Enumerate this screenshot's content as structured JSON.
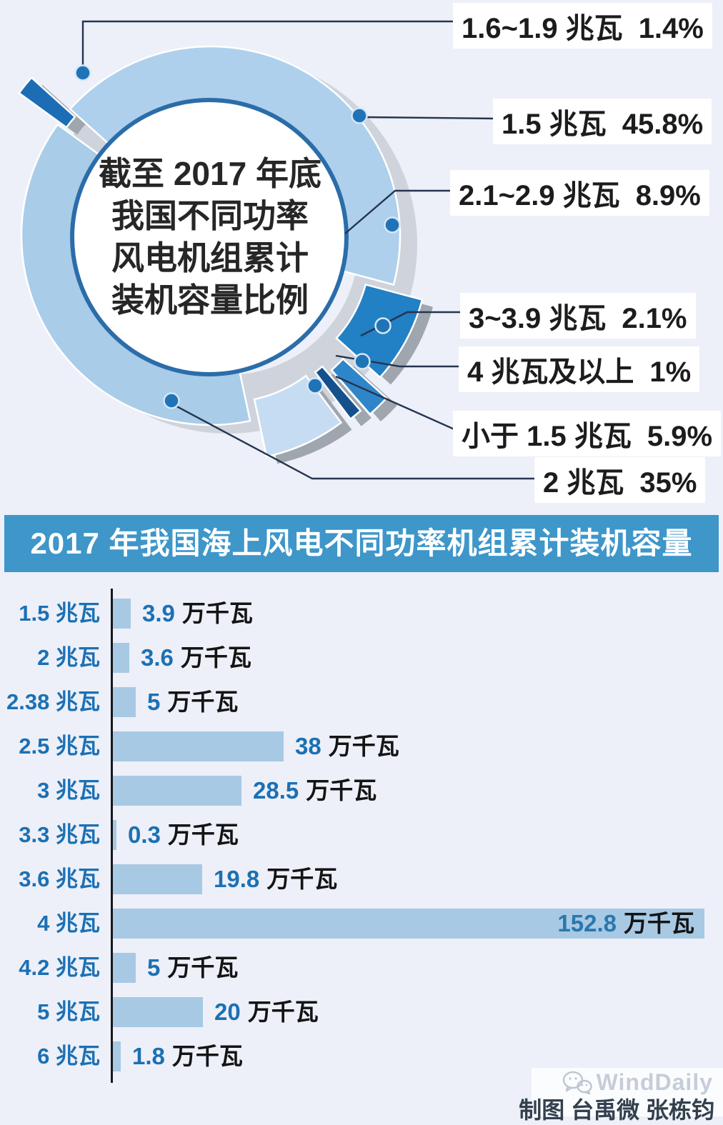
{
  "pie": {
    "center_title_lines": [
      "截至 2017 年底",
      "我国不同功率",
      "风电机组累计",
      "装机容量比例"
    ]
  },
  "chart_data": [
    {
      "type": "pie",
      "title": "截至2017年底我国不同功率风电机组累计装机容量比例",
      "legend_position": "right-callouts",
      "slices": [
        {
          "label": "1.6~1.9 兆瓦",
          "value": 1.4,
          "pct_text": "1.4%",
          "color": "#1d6db6"
        },
        {
          "label": "1.5 兆瓦",
          "value": 45.8,
          "pct_text": "45.8%",
          "color": "#aed0ec"
        },
        {
          "label": "2.1~2.9 兆瓦",
          "value": 8.9,
          "pct_text": "8.9%",
          "color": "#2280c4"
        },
        {
          "label": "3~3.9 兆瓦",
          "value": 2.1,
          "pct_text": "2.1%",
          "color": "#2e86c8"
        },
        {
          "label": "4 兆瓦及以上",
          "value": 1.0,
          "pct_text": "1%",
          "color": "#14518c"
        },
        {
          "label": "小于 1.5 兆瓦",
          "value": 5.9,
          "pct_text": "5.9%",
          "color": "#c6dcf2"
        },
        {
          "label": "2 兆瓦",
          "value": 35.0,
          "pct_text": "35%",
          "color": "#a9cce9"
        }
      ]
    },
    {
      "type": "bar",
      "title": "2017 年我国海上风电不同功率机组累计装机容量",
      "orientation": "horizontal",
      "unit": "万千瓦",
      "categories": [
        "1.5 兆瓦",
        "2 兆瓦",
        "2.38 兆瓦",
        "2.5 兆瓦",
        "3 兆瓦",
        "3.3 兆瓦",
        "3.6 兆瓦",
        "4 兆瓦",
        "4.2 兆瓦",
        "5 兆瓦",
        "6 兆瓦"
      ],
      "values": [
        3.9,
        3.6,
        5,
        38,
        28.5,
        0.3,
        19.8,
        152.8,
        5,
        20,
        1.8
      ],
      "value_texts": [
        "3.9",
        "3.6",
        "5",
        "38",
        "28.5",
        "0.3",
        "19.8",
        "152.8",
        "5",
        "20",
        "1.8"
      ]
    }
  ],
  "colors": {
    "page_bg": "#edf0f8",
    "bar_fill": "#a7c9e4",
    "bar_title_bg": "#3e96c9",
    "category_blue": "#1c70b4",
    "leader_line": "#253550",
    "dot_fill": "#1f74b8",
    "circle_border": "#2a6da9",
    "shadow_gray": "#cfd4dc",
    "side_gray": "#a0a6ae"
  },
  "credits": {
    "watermark": "WindDaily",
    "credit_text": "制图 台禹微 张栋钧"
  }
}
